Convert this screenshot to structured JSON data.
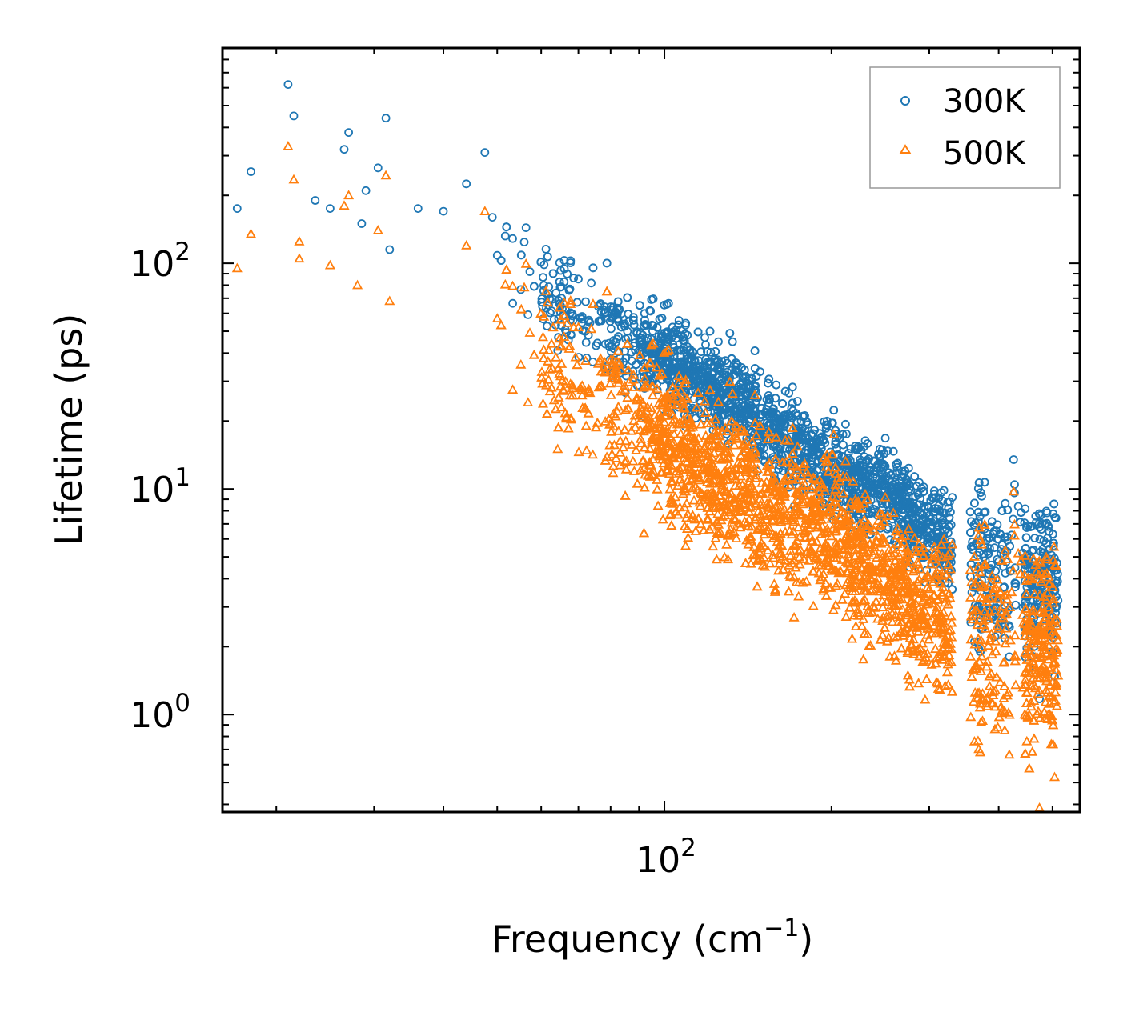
{
  "chart_data": {
    "type": "scatter",
    "xscale": "log",
    "yscale": "log",
    "xlim": [
      16,
      560
    ],
    "ylim": [
      0.37,
      900
    ],
    "xlabel": "Frequency (cm",
    "xlabel_sup": "−1",
    "xlabel_end": ")",
    "ylabel": "Lifetime (ps)",
    "x_ticks": [
      {
        "value": 100,
        "base": "10",
        "exp": "2"
      }
    ],
    "y_ticks": [
      {
        "value": 1,
        "base": "10",
        "exp": "0"
      },
      {
        "value": 10,
        "base": "10",
        "exp": "1"
      },
      {
        "value": 100,
        "base": "10",
        "exp": "2"
      }
    ],
    "legend_position": "top-right",
    "series": [
      {
        "name": "300K",
        "label": "300K",
        "marker": "circle",
        "color": "#1f77b4",
        "trend": [
          {
            "f": 17,
            "tau": 180
          },
          {
            "f": 30,
            "tau": 150
          },
          {
            "f": 50,
            "tau": 100
          },
          {
            "f": 80,
            "tau": 50
          },
          {
            "f": 120,
            "tau": 30
          },
          {
            "f": 160,
            "tau": 18
          },
          {
            "f": 200,
            "tau": 12
          },
          {
            "f": 250,
            "tau": 10
          },
          {
            "f": 330,
            "tau": 5.5
          },
          {
            "f": 380,
            "tau": 4.5
          },
          {
            "f": 500,
            "tau": 4
          }
        ],
        "points": [
          {
            "f": 21.0,
            "tau": 620
          },
          {
            "f": 21.5,
            "tau": 450
          },
          {
            "f": 27,
            "tau": 380
          },
          {
            "f": 31.5,
            "tau": 440
          },
          {
            "f": 47.5,
            "tau": 310
          },
          {
            "f": 26.5,
            "tau": 320
          },
          {
            "f": 18,
            "tau": 255
          },
          {
            "f": 30.5,
            "tau": 265
          },
          {
            "f": 44,
            "tau": 225
          },
          {
            "f": 17,
            "tau": 175
          },
          {
            "f": 29,
            "tau": 210
          },
          {
            "f": 25,
            "tau": 175
          },
          {
            "f": 36,
            "tau": 175
          },
          {
            "f": 40,
            "tau": 170
          },
          {
            "f": 49,
            "tau": 160
          },
          {
            "f": 32,
            "tau": 115
          },
          {
            "f": 28.5,
            "tau": 150
          },
          {
            "f": 23.5,
            "tau": 190
          }
        ]
      },
      {
        "name": "500K",
        "label": "500K",
        "marker": "triangle",
        "color": "#ff7f0e",
        "trend": [
          {
            "f": 17,
            "tau": 110
          },
          {
            "f": 30,
            "tau": 75
          },
          {
            "f": 50,
            "tau": 50
          },
          {
            "f": 80,
            "tau": 25
          },
          {
            "f": 120,
            "tau": 12
          },
          {
            "f": 160,
            "tau": 8
          },
          {
            "f": 200,
            "tau": 6.5
          },
          {
            "f": 250,
            "tau": 4
          },
          {
            "f": 330,
            "tau": 2.5
          },
          {
            "f": 380,
            "tau": 2.2
          },
          {
            "f": 500,
            "tau": 2
          }
        ],
        "points": [
          {
            "f": 21.0,
            "tau": 330
          },
          {
            "f": 21.5,
            "tau": 235
          },
          {
            "f": 31.5,
            "tau": 245
          },
          {
            "f": 27,
            "tau": 200
          },
          {
            "f": 26.5,
            "tau": 180
          },
          {
            "f": 47.5,
            "tau": 170
          },
          {
            "f": 18,
            "tau": 135
          },
          {
            "f": 30.5,
            "tau": 140
          },
          {
            "f": 22,
            "tau": 125
          },
          {
            "f": 17,
            "tau": 95
          },
          {
            "f": 22,
            "tau": 105
          },
          {
            "f": 25,
            "tau": 98
          },
          {
            "f": 44,
            "tau": 120
          },
          {
            "f": 28,
            "tau": 80
          },
          {
            "f": 32,
            "tau": 68
          }
        ]
      }
    ]
  }
}
